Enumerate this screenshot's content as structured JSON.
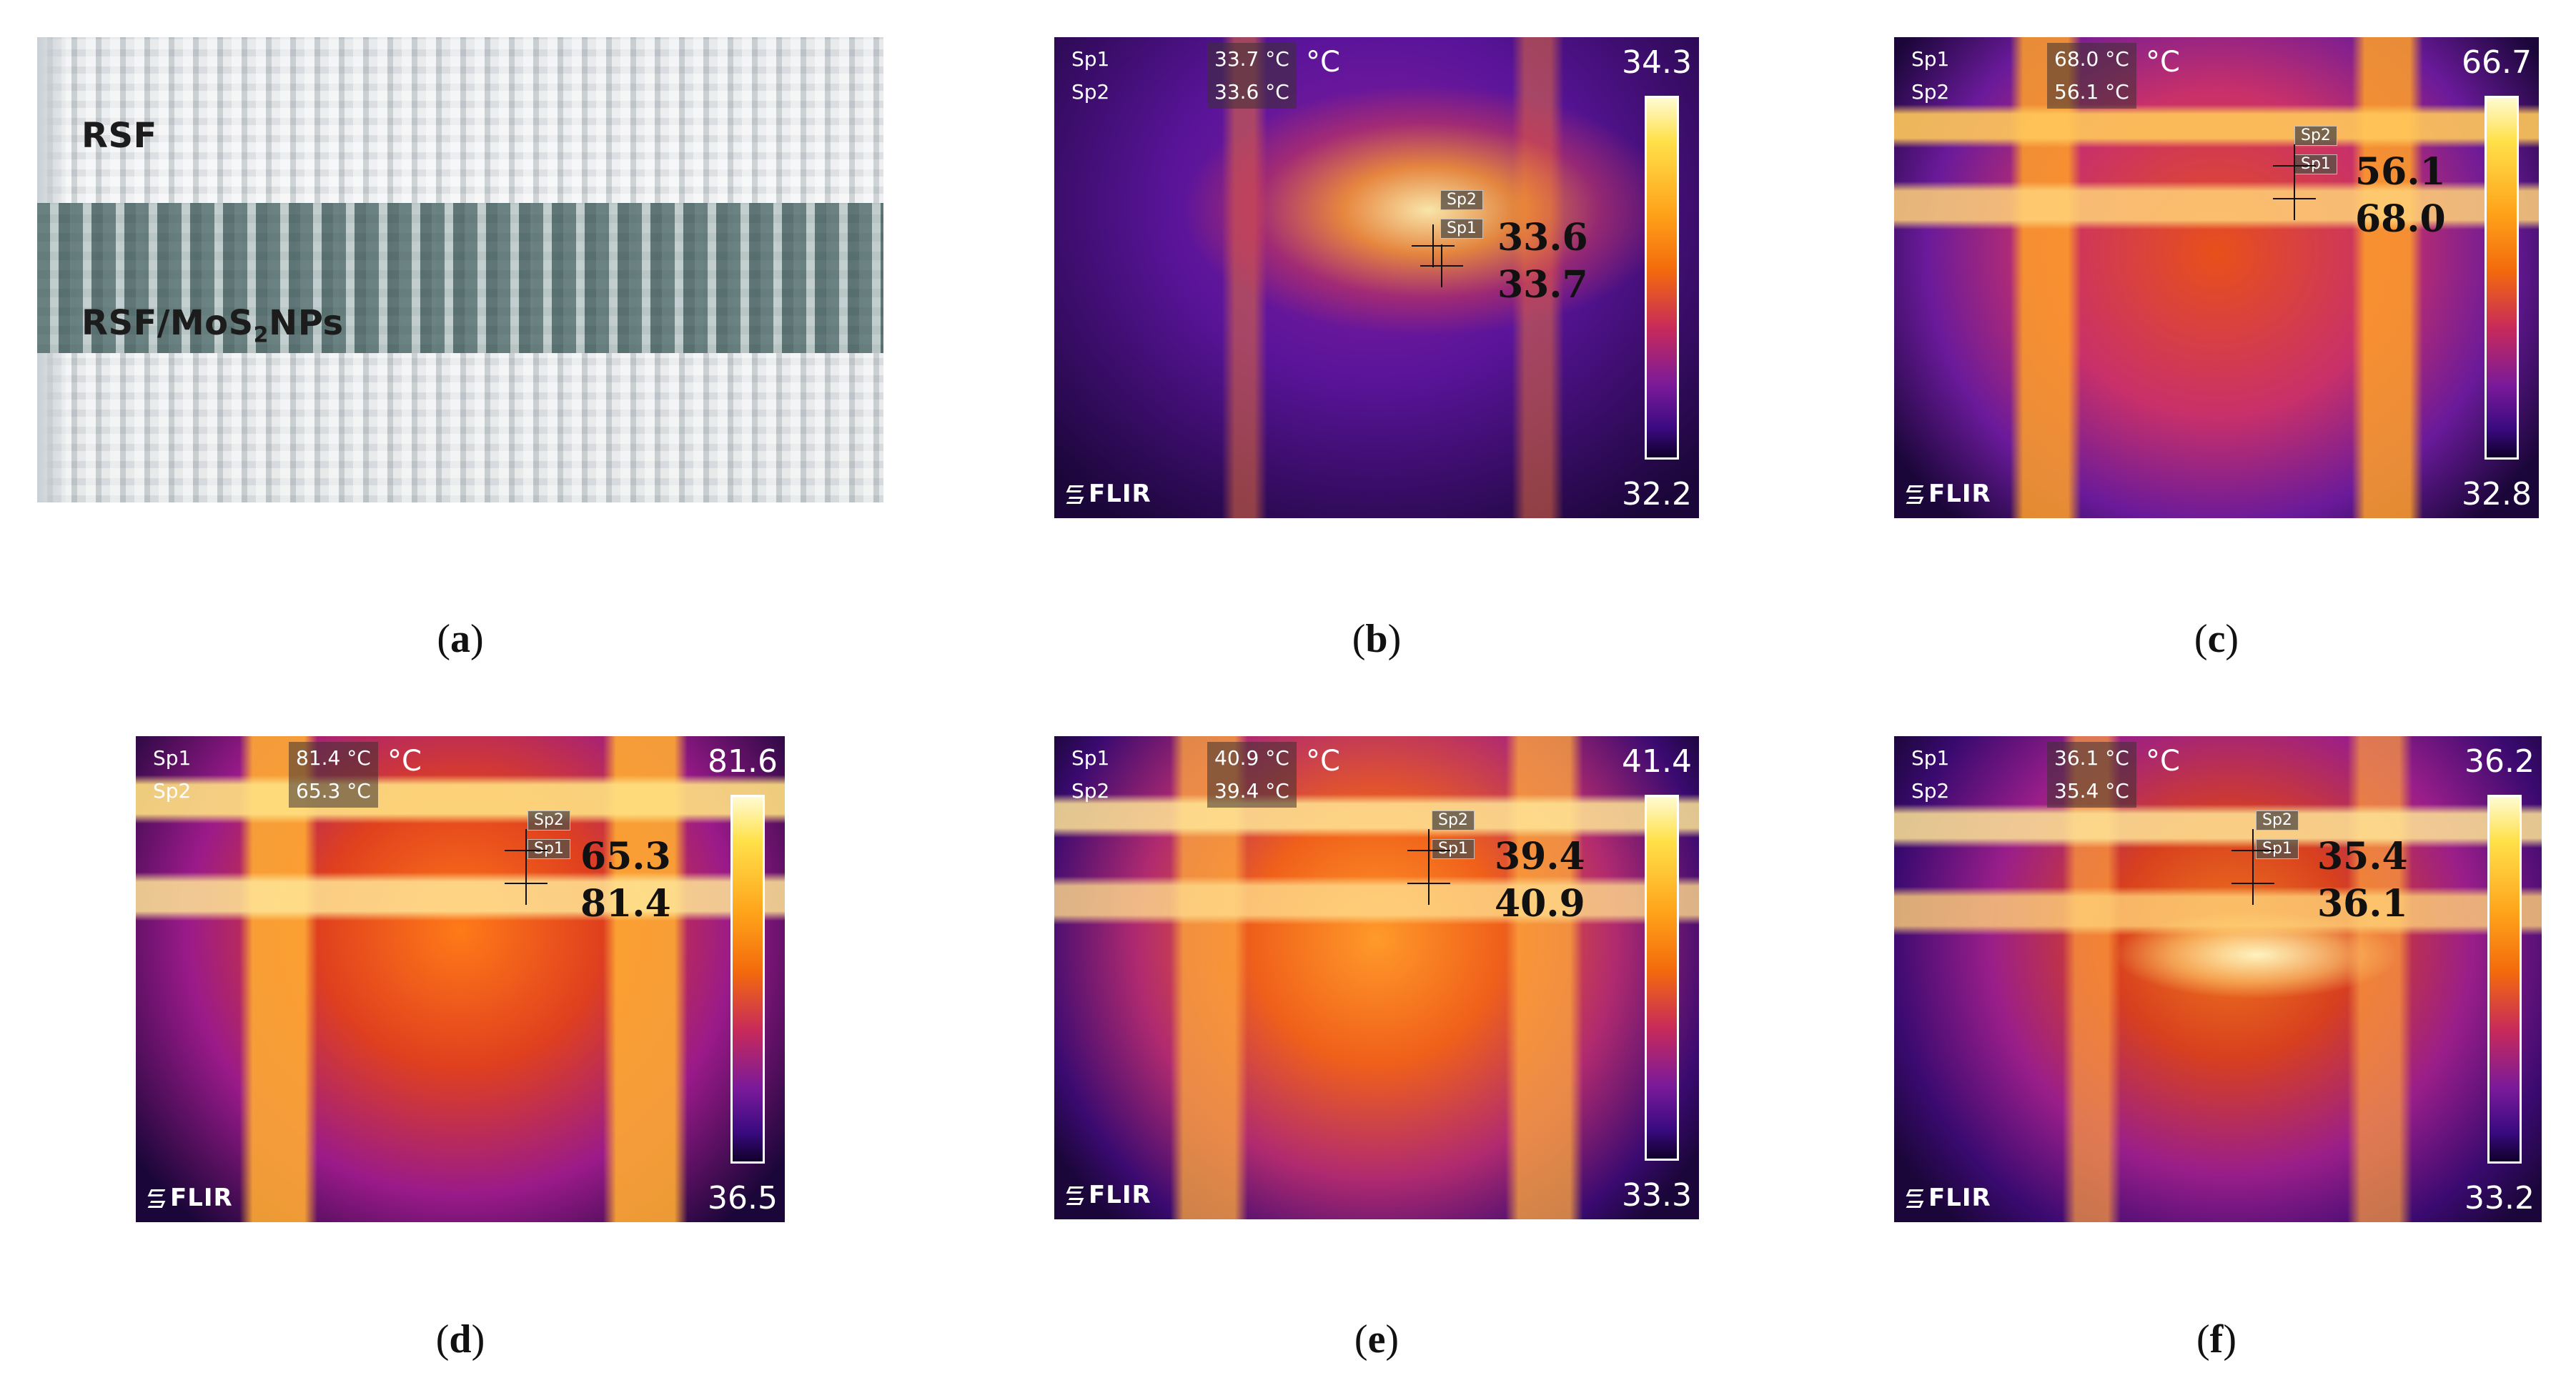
{
  "panel_a": {
    "label_top": "RSF",
    "label_band_main": "RSF/MoS",
    "label_band_sub": "2",
    "label_band_tail": "NPs"
  },
  "thermal_panels": [
    {
      "id": "b",
      "sp1": "33.7 °C",
      "sp2": "33.6 °C",
      "unit": "°C",
      "scale_max": "34.3",
      "scale_min": "32.2",
      "annot_top": "33.6",
      "annot_bottom": "33.7",
      "tag1": "Sp1",
      "tag2": "Sp2"
    },
    {
      "id": "c",
      "sp1": "68.0 °C",
      "sp2": "56.1 °C",
      "unit": "°C",
      "scale_max": "66.7",
      "scale_min": "32.8",
      "annot_top": "56.1",
      "annot_bottom": "68.0",
      "tag1": "Sp1",
      "tag2": "Sp2"
    },
    {
      "id": "d",
      "sp1": "81.4 °C",
      "sp2": "65.3 °C",
      "unit": "°C",
      "scale_max": "81.6",
      "scale_min": "36.5",
      "annot_top": "65.3",
      "annot_bottom": "81.4",
      "tag1": "Sp1",
      "tag2": "Sp2"
    },
    {
      "id": "e",
      "sp1": "40.9 °C",
      "sp2": "39.4 °C",
      "unit": "°C",
      "scale_max": "41.4",
      "scale_min": "33.3",
      "annot_top": "39.4",
      "annot_bottom": "40.9",
      "tag1": "Sp1",
      "tag2": "Sp2"
    },
    {
      "id": "f",
      "sp1": "36.1 °C",
      "sp2": "35.4 °C",
      "unit": "°C",
      "scale_max": "36.2",
      "scale_min": "33.2",
      "annot_top": "35.4",
      "annot_bottom": "36.1",
      "tag1": "Sp1",
      "tag2": "Sp2"
    }
  ],
  "readout_labels": {
    "sp1": "Sp1",
    "sp2": "Sp2"
  },
  "brand": "FLIR",
  "captions": {
    "a": "a",
    "b": "b",
    "c": "c",
    "d": "d",
    "e": "e",
    "f": "f"
  },
  "colors": {
    "hot": "#fff6b0",
    "mid": "#ff8a1a",
    "cool": "#6a14a0",
    "background": "#050005"
  }
}
